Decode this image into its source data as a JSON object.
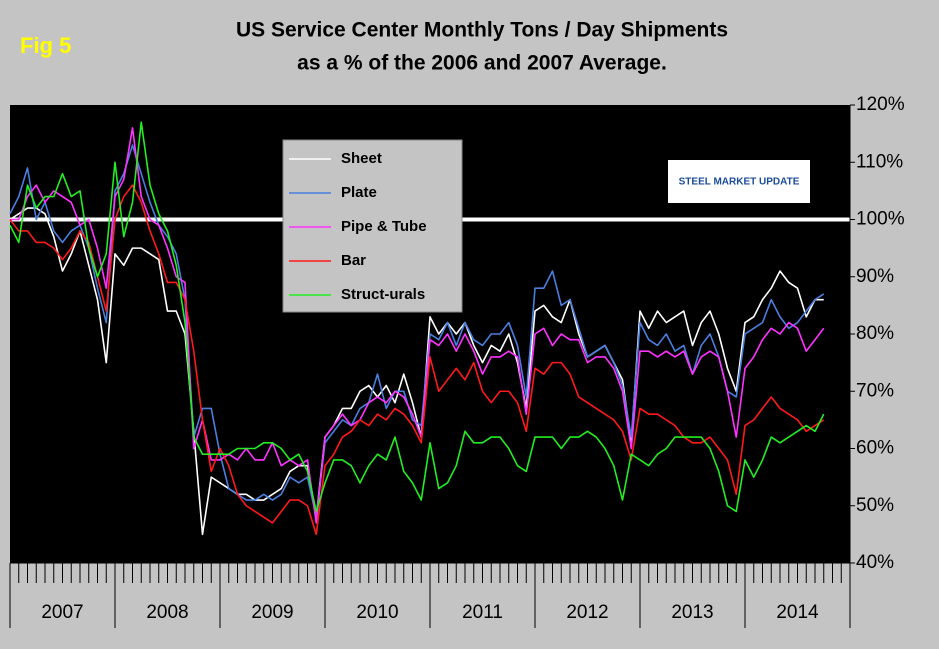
{
  "chart_data": {
    "type": "line",
    "figure_label": "Fig 5",
    "title": "US Service Center Monthly Tons / Day Shipments",
    "subtitle": "as a % of the 2006 and 2007 Average.",
    "logo_text": "STEEL MARKET UPDATE",
    "categories": [
      null,
      null,
      null,
      null,
      null,
      null,
      null,
      null,
      null,
      null,
      null,
      null,
      null,
      null,
      null,
      null,
      null,
      null,
      null,
      null,
      null,
      null,
      null,
      null,
      null,
      null,
      null,
      null,
      null,
      null,
      null,
      null,
      null,
      null,
      null,
      null,
      null,
      null,
      null,
      null,
      null,
      null,
      null,
      null,
      null,
      null,
      null,
      null,
      null,
      null,
      null,
      null,
      null,
      null,
      null,
      null,
      null,
      null,
      null,
      null,
      null,
      null,
      null,
      null,
      null,
      null,
      null,
      null,
      null,
      null,
      null,
      null,
      null,
      null,
      null,
      null,
      null,
      null,
      null,
      null,
      null,
      null,
      null,
      null,
      null,
      null,
      null,
      null,
      null,
      null,
      null,
      null,
      null,
      null,
      null,
      null
    ],
    "x_groups": [
      {
        "label": "2007",
        "size": 12
      },
      {
        "label": "2008",
        "size": 12
      },
      {
        "label": "2009",
        "size": 12
      },
      {
        "label": "2010",
        "size": 12
      },
      {
        "label": "2011",
        "size": 12
      },
      {
        "label": "2012",
        "size": 12
      },
      {
        "label": "2013",
        "size": 12
      },
      {
        "label": "2014",
        "size": 12
      }
    ],
    "ylim": [
      40,
      120
    ],
    "yticks": [
      {
        "value": 40,
        "label": "40%"
      },
      {
        "value": 50,
        "label": "50%"
      },
      {
        "value": 60,
        "label": "60%"
      },
      {
        "value": 70,
        "label": "70%"
      },
      {
        "value": 80,
        "label": "80%"
      },
      {
        "value": 90,
        "label": "90%"
      },
      {
        "value": 100,
        "label": "100%"
      },
      {
        "value": 110,
        "label": "110%"
      },
      {
        "value": 120,
        "label": "120%"
      }
    ],
    "reference_line": 100,
    "grid": false,
    "legend": "upper-center",
    "series": [
      {
        "name": "Sheet",
        "color": "#ffffff",
        "values": [
          100,
          101,
          102,
          102,
          101,
          97,
          91,
          94,
          98,
          92,
          86,
          75,
          94,
          92,
          95,
          95,
          94,
          93,
          84,
          84,
          80,
          63,
          45,
          55,
          54,
          53,
          52,
          52,
          51,
          51,
          52,
          53,
          56,
          57,
          57,
          48,
          62,
          64,
          67,
          67,
          70,
          71,
          69,
          71,
          68,
          73,
          68,
          62,
          83,
          80,
          82,
          80,
          82,
          78,
          75,
          78,
          77,
          80,
          75,
          67,
          84,
          85,
          83,
          82,
          86,
          80,
          76,
          77,
          78,
          75,
          72,
          61,
          84,
          81,
          84,
          82,
          83,
          84,
          78,
          82,
          84,
          80,
          74,
          70,
          82,
          83,
          86,
          88,
          91,
          89,
          88,
          83,
          86,
          86,
          null,
          null
        ]
      },
      {
        "name": "Plate",
        "color": "#4a7fe0",
        "values": [
          101,
          104,
          109,
          100,
          103,
          98,
          96,
          98,
          99,
          95,
          88,
          82,
          105,
          108,
          113,
          108,
          103,
          99,
          97,
          94,
          86,
          62,
          67,
          67,
          59,
          53,
          52,
          51,
          51,
          52,
          51,
          52,
          55,
          54,
          55,
          48,
          61,
          63,
          65,
          64,
          67,
          68,
          73,
          67,
          70,
          70,
          65,
          64,
          80,
          79,
          82,
          78,
          82,
          79,
          78,
          80,
          80,
          82,
          78,
          69,
          88,
          88,
          91,
          85,
          86,
          81,
          76,
          77,
          78,
          75,
          71,
          62,
          82,
          79,
          78,
          80,
          77,
          78,
          73,
          78,
          80,
          76,
          70,
          69,
          80,
          81,
          82,
          86,
          83,
          81,
          82,
          84,
          86,
          87,
          null,
          null
        ]
      },
      {
        "name": "Pipe & Tube",
        "color": "#ff33ff",
        "values": [
          100,
          100,
          104,
          106,
          103,
          105,
          104,
          103,
          99,
          100,
          95,
          88,
          104,
          107,
          116,
          104,
          100,
          99,
          95,
          90,
          89,
          60,
          65,
          58,
          58,
          59,
          58,
          60,
          58,
          58,
          61,
          57,
          58,
          57,
          58,
          47,
          62,
          64,
          66,
          64,
          65,
          68,
          69,
          68,
          70,
          69,
          66,
          62,
          79,
          78,
          80,
          77,
          80,
          77,
          73,
          76,
          76,
          77,
          76,
          66,
          80,
          81,
          78,
          80,
          79,
          79,
          75,
          76,
          76,
          74,
          70,
          60,
          77,
          77,
          76,
          77,
          76,
          77,
          73,
          76,
          77,
          76,
          70,
          62,
          74,
          76,
          79,
          81,
          80,
          82,
          81,
          77,
          79,
          81,
          null,
          null
        ]
      },
      {
        "name": "Bar",
        "color": "#ff1a1a",
        "values": [
          100,
          98,
          98,
          96,
          96,
          95,
          93,
          95,
          98,
          96,
          90,
          84,
          100,
          104,
          106,
          103,
          98,
          94,
          89,
          89,
          86,
          77,
          65,
          56,
          60,
          57,
          52,
          50,
          49,
          48,
          47,
          49,
          51,
          51,
          50,
          45,
          57,
          59,
          62,
          63,
          65,
          64,
          66,
          65,
          67,
          66,
          64,
          61,
          76,
          70,
          72,
          74,
          72,
          75,
          70,
          68,
          70,
          70,
          68,
          63,
          74,
          73,
          75,
          75,
          73,
          69,
          68,
          67,
          66,
          65,
          63,
          58,
          67,
          66,
          66,
          65,
          64,
          62,
          61,
          61,
          62,
          60,
          58,
          52,
          64,
          65,
          67,
          69,
          67,
          66,
          65,
          63,
          64,
          65,
          null,
          null
        ]
      },
      {
        "name": "Struct-urals",
        "color": "#22ee22",
        "values": [
          99,
          96,
          106,
          102,
          104,
          104,
          108,
          104,
          105,
          95,
          90,
          94,
          110,
          97,
          103,
          117,
          106,
          101,
          98,
          92,
          82,
          62,
          59,
          59,
          59,
          59,
          60,
          60,
          60,
          61,
          61,
          60,
          58,
          59,
          56,
          49,
          54,
          58,
          58,
          57,
          54,
          57,
          59,
          58,
          62,
          56,
          54,
          51,
          61,
          53,
          54,
          57,
          63,
          61,
          61,
          62,
          62,
          60,
          57,
          56,
          62,
          62,
          62,
          60,
          62,
          62,
          63,
          62,
          60,
          57,
          51,
          59,
          58,
          57,
          59,
          60,
          62,
          62,
          62,
          62,
          60,
          56,
          50,
          49,
          58,
          55,
          58,
          62,
          61,
          62,
          63,
          64,
          63,
          66,
          null,
          null
        ]
      }
    ]
  }
}
